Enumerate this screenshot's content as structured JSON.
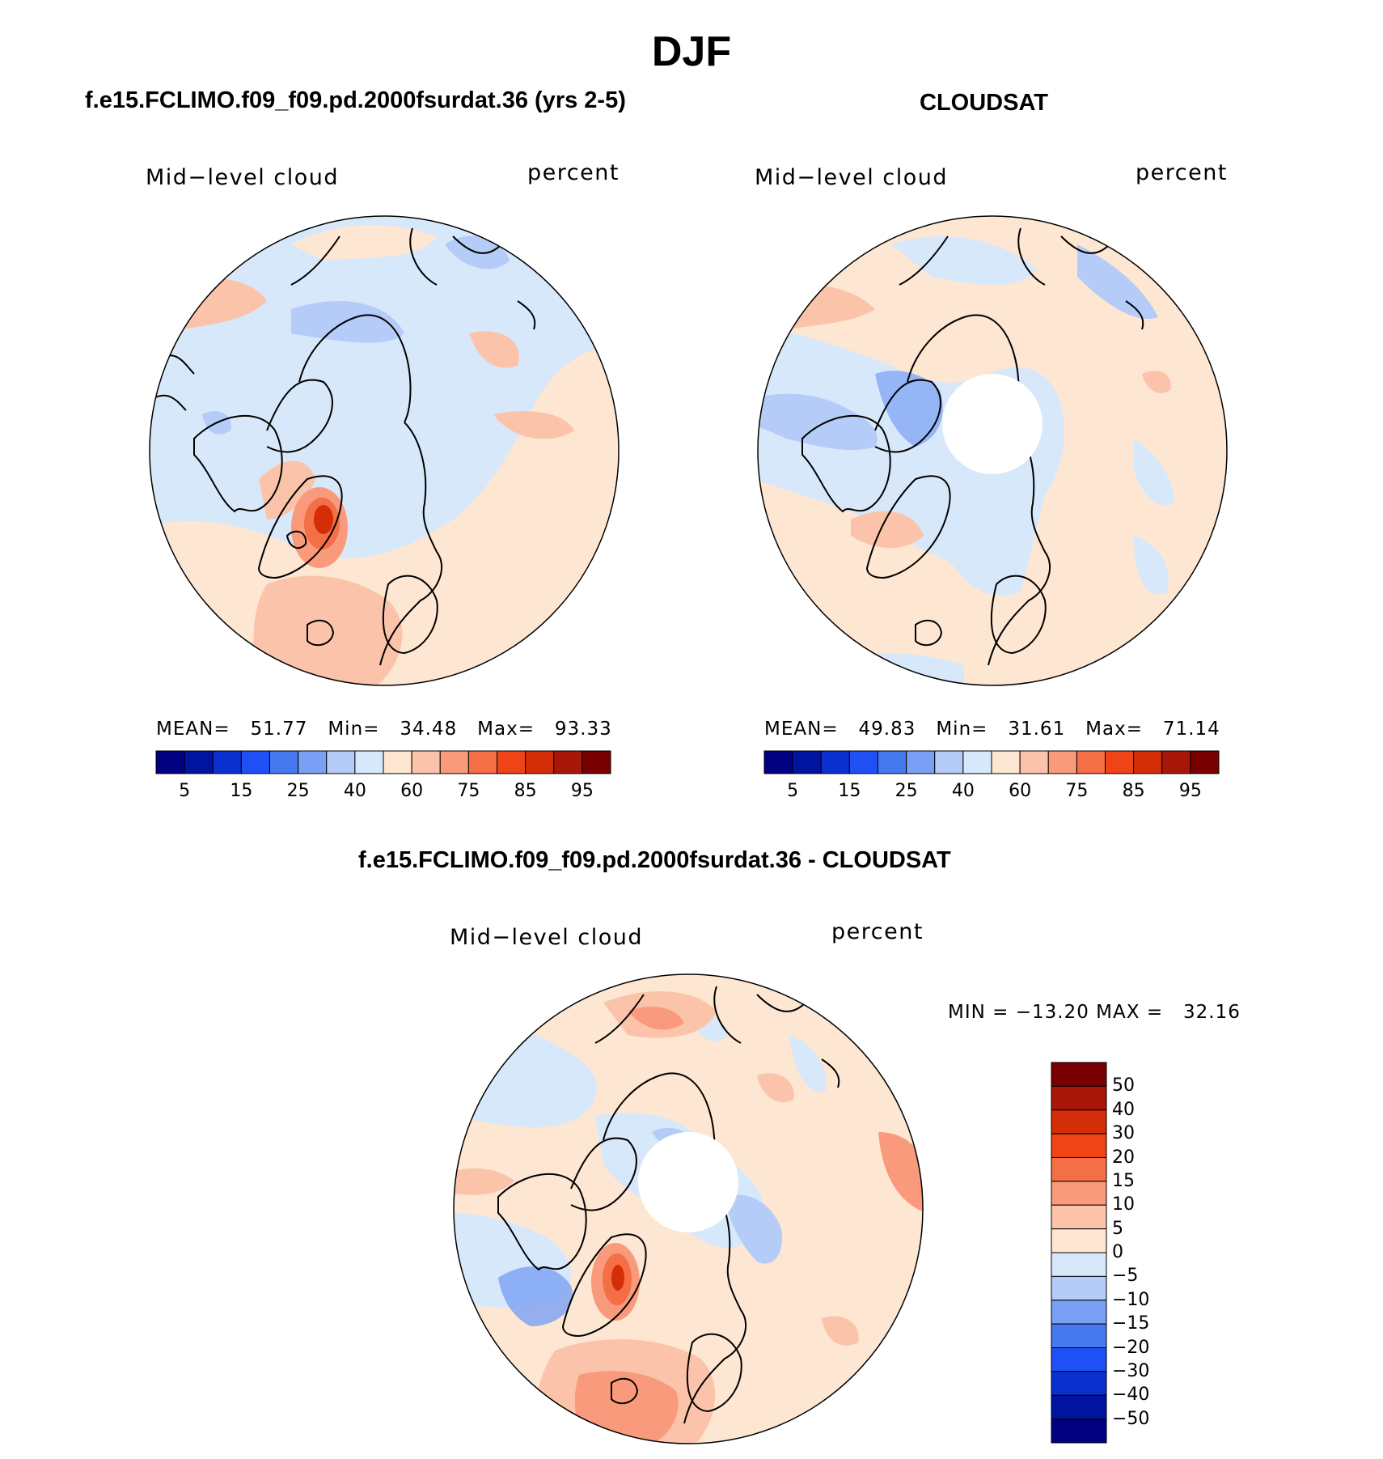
{
  "title": "DJF",
  "panels": [
    {
      "id": "model",
      "title": "f.e15.FCLIMO.f09_f09.pd.2000fsurdat.36 (yrs 2-5)",
      "variable": "Mid−level cloud",
      "units": "percent",
      "stats": {
        "mean_label": "MEAN=",
        "mean": "51.77",
        "min_label": "Min=",
        "min": "34.48",
        "max_label": "Max=",
        "max": "93.33"
      },
      "polar_hole": false
    },
    {
      "id": "obs",
      "title": "CLOUDSAT",
      "variable": "Mid−level cloud",
      "units": "percent",
      "stats": {
        "mean_label": "MEAN=",
        "mean": "49.83",
        "min_label": "Min=",
        "min": "31.61",
        "max_label": "Max=",
        "max": "71.14"
      },
      "polar_hole": true
    },
    {
      "id": "diff",
      "title": "f.e15.FCLIMO.f09_f09.pd.2000fsurdat.36 - CLOUDSAT",
      "variable": "Mid−level cloud",
      "units": "percent",
      "stats": {
        "min_label": "MIN =",
        "min": "−13.20",
        "max_label": "MAX =",
        "max": "32.16"
      },
      "polar_hole": true
    }
  ],
  "colorbars": {
    "absolute": {
      "colors": [
        "#000080",
        "#0014a0",
        "#0a30d0",
        "#1e50f5",
        "#4678f0",
        "#7aa0f5",
        "#b4ccf7",
        "#d8e8fb",
        "#fde6d2",
        "#fbc4aa",
        "#f99a7c",
        "#f46e46",
        "#ee4416",
        "#d42e08",
        "#a8180a",
        "#780000"
      ],
      "labels": [
        "5",
        "15",
        "25",
        "40",
        "60",
        "75",
        "85",
        "95"
      ]
    },
    "difference": {
      "colors": [
        "#780000",
        "#a8180a",
        "#d42e08",
        "#ee4416",
        "#f46e46",
        "#f99a7c",
        "#fbc4aa",
        "#fde6d2",
        "#d8e8fb",
        "#b4ccf7",
        "#7aa0f5",
        "#4678f0",
        "#1e50f5",
        "#0a30d0",
        "#0014a0",
        "#000080"
      ],
      "labels": [
        "50",
        "40",
        "30",
        "20",
        "15",
        "10",
        "5",
        "0",
        "−5",
        "−10",
        "−15",
        "−20",
        "−30",
        "−40",
        "−50"
      ]
    }
  }
}
